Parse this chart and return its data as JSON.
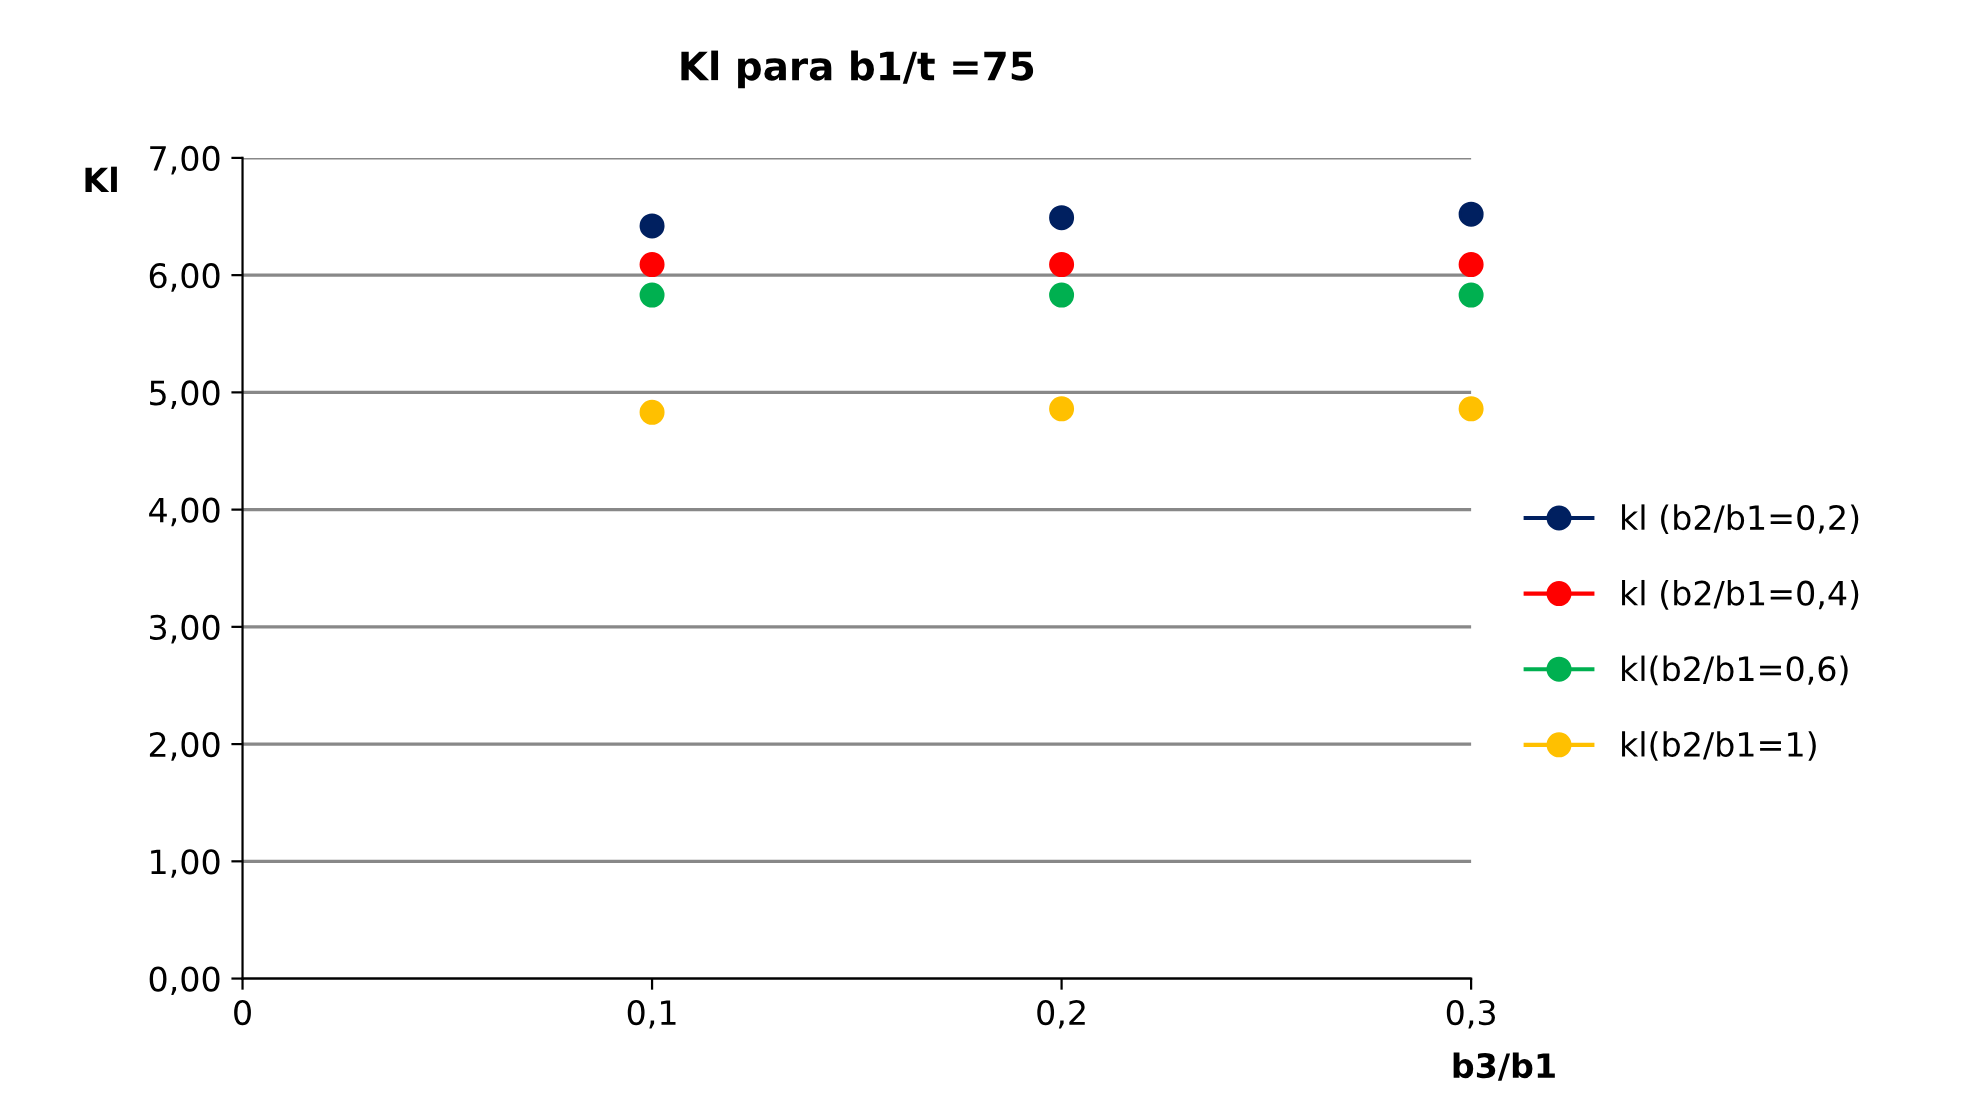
{
  "chart_data": {
    "type": "scatter",
    "title": "Kl para b1/t =75",
    "xlabel": "b3/b1",
    "ylabel": "Kl",
    "x": [
      0.1,
      0.2,
      0.3
    ],
    "series": [
      {
        "name": "kl (b2/b1=0,2)",
        "color": "#002060",
        "values": [
          6.42,
          6.49,
          6.52
        ]
      },
      {
        "name": "kl (b2/b1=0,4)",
        "color": "#ff0000",
        "values": [
          6.09,
          6.09,
          6.09
        ]
      },
      {
        "name": "kl(b2/b1=0,6)",
        "color": "#00b050",
        "values": [
          5.83,
          5.83,
          5.83
        ]
      },
      {
        "name": "kl(b2/b1=1)",
        "color": "#ffc000",
        "values": [
          4.83,
          4.86,
          4.86
        ]
      }
    ],
    "xlim": [
      0,
      0.3
    ],
    "xticks": [
      0,
      {
        "value": 0.1,
        "label": "0,1"
      },
      {
        "value": 0.2,
        "label": "0,2"
      },
      {
        "value": 0.3,
        "label": "0,3"
      }
    ],
    "ylim": [
      0,
      7
    ],
    "yticks": [
      {
        "value": 0,
        "label": "0,00"
      },
      {
        "value": 1,
        "label": "1,00"
      },
      {
        "value": 2,
        "label": "2,00"
      },
      {
        "value": 3,
        "label": "3,00"
      },
      {
        "value": 4,
        "label": "4,00"
      },
      {
        "value": 5,
        "label": "5,00"
      },
      {
        "value": 6,
        "label": "6,00"
      },
      {
        "value": 7,
        "label": "7,00"
      }
    ],
    "grid": "y",
    "legend": "right",
    "marker": "circle"
  }
}
